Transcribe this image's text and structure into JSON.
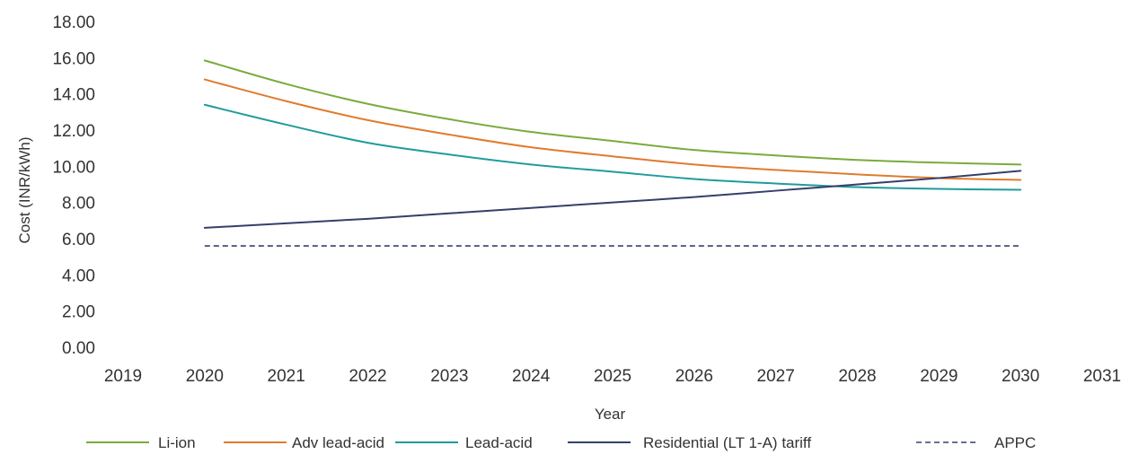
{
  "chart_data": {
    "type": "line",
    "title": "",
    "xlabel": "Year",
    "ylabel": "Cost (INR/kWh)",
    "xlim": [
      2019,
      2031
    ],
    "ylim": [
      0,
      18
    ],
    "x_ticks": [
      "2019",
      "2020",
      "2021",
      "2022",
      "2023",
      "2024",
      "2025",
      "2026",
      "2027",
      "2028",
      "2029",
      "2030",
      "2031"
    ],
    "y_ticks": [
      "0.00",
      "2.00",
      "4.00",
      "6.00",
      "8.00",
      "10.00",
      "12.00",
      "14.00",
      "16.00",
      "18.00"
    ],
    "grid": false,
    "legend_position": "bottom",
    "x": [
      2020,
      2021,
      2022,
      2023,
      2024,
      2025,
      2026,
      2027,
      2028,
      2029,
      2030
    ],
    "series": [
      {
        "name": "Li-ion",
        "color": "#7aab3c",
        "dashed": false,
        "values": [
          15.85,
          14.55,
          13.45,
          12.6,
          11.9,
          11.4,
          10.9,
          10.6,
          10.35,
          10.2,
          10.1
        ]
      },
      {
        "name": "Adv lead-acid",
        "color": "#e07b2e",
        "dashed": false,
        "values": [
          14.8,
          13.6,
          12.55,
          11.75,
          11.05,
          10.55,
          10.1,
          9.8,
          9.55,
          9.35,
          9.25
        ]
      },
      {
        "name": "Lead-acid",
        "color": "#1f9c9b",
        "dashed": false,
        "values": [
          13.4,
          12.3,
          11.3,
          10.65,
          10.1,
          9.7,
          9.3,
          9.05,
          8.85,
          8.75,
          8.7
        ]
      },
      {
        "name": "Residential (LT 1-A) tariff",
        "color": "#34406a",
        "dashed": false,
        "values": [
          6.6,
          6.85,
          7.1,
          7.4,
          7.7,
          8.0,
          8.3,
          8.65,
          9.0,
          9.35,
          9.75
        ]
      },
      {
        "name": "APPC",
        "color": "#34406a",
        "dashed": true,
        "values": [
          5.6,
          5.6,
          5.6,
          5.6,
          5.6,
          5.6,
          5.6,
          5.6,
          5.6,
          5.6,
          5.6
        ]
      }
    ]
  }
}
